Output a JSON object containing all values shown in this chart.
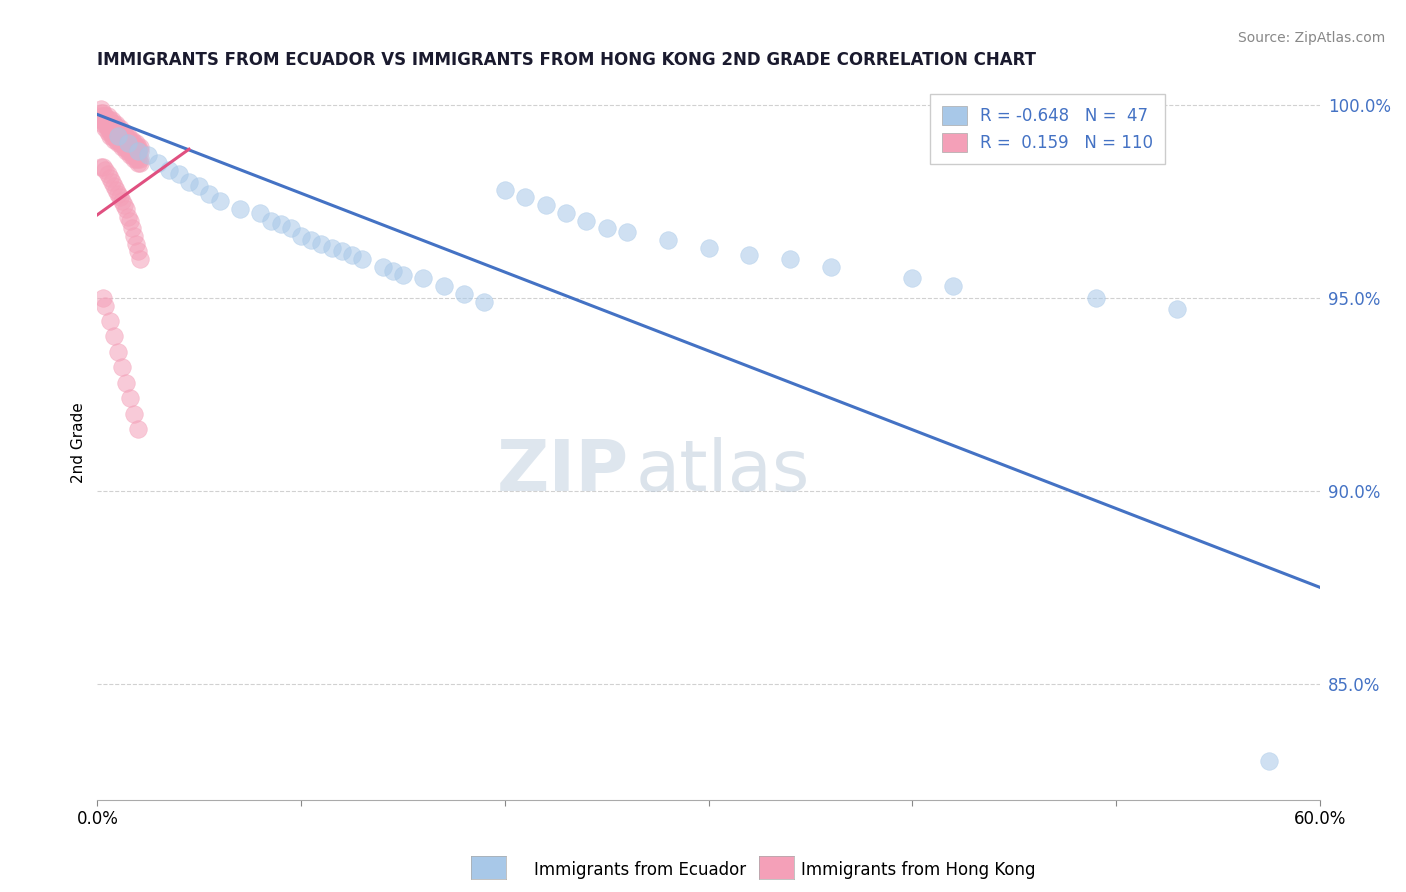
{
  "title": "IMMIGRANTS FROM ECUADOR VS IMMIGRANTS FROM HONG KONG 2ND GRADE CORRELATION CHART",
  "source": "Source: ZipAtlas.com",
  "xlabel_blue": "Immigrants from Ecuador",
  "xlabel_pink": "Immigrants from Hong Kong",
  "ylabel": "2nd Grade",
  "xlim": [
    0.0,
    0.6
  ],
  "ylim": [
    0.82,
    1.005
  ],
  "yticks": [
    0.85,
    0.9,
    0.95,
    1.0
  ],
  "ytick_labels": [
    "85.0%",
    "90.0%",
    "95.0%",
    "100.0%"
  ],
  "xticks": [
    0.0,
    0.1,
    0.2,
    0.3,
    0.4,
    0.5,
    0.6
  ],
  "xtick_labels": [
    "0.0%",
    "",
    "",
    "",
    "",
    "",
    "60.0%"
  ],
  "R_blue": -0.648,
  "N_blue": 47,
  "R_pink": 0.159,
  "N_pink": 110,
  "blue_color": "#a8c8e8",
  "pink_color": "#f4a0b8",
  "blue_line_color": "#4472c4",
  "pink_line_color": "#e05080",
  "watermark_zip": "ZIP",
  "watermark_atlas": "atlas",
  "blue_trend_x": [
    0.0,
    0.6
  ],
  "blue_trend_y": [
    0.9975,
    0.875
  ],
  "pink_trend_x": [
    0.0,
    0.045
  ],
  "pink_trend_y": [
    0.9715,
    0.9885
  ],
  "blue_scatter_x": [
    0.01,
    0.015,
    0.02,
    0.025,
    0.03,
    0.035,
    0.04,
    0.045,
    0.05,
    0.055,
    0.06,
    0.07,
    0.08,
    0.085,
    0.09,
    0.095,
    0.1,
    0.105,
    0.11,
    0.115,
    0.12,
    0.125,
    0.13,
    0.14,
    0.145,
    0.15,
    0.16,
    0.17,
    0.18,
    0.19,
    0.2,
    0.21,
    0.22,
    0.23,
    0.24,
    0.25,
    0.26,
    0.28,
    0.3,
    0.32,
    0.34,
    0.36,
    0.4,
    0.42,
    0.49,
    0.53,
    0.575
  ],
  "blue_scatter_y": [
    0.992,
    0.99,
    0.988,
    0.987,
    0.985,
    0.983,
    0.982,
    0.98,
    0.979,
    0.977,
    0.975,
    0.973,
    0.972,
    0.97,
    0.969,
    0.968,
    0.966,
    0.965,
    0.964,
    0.963,
    0.962,
    0.961,
    0.96,
    0.958,
    0.957,
    0.956,
    0.955,
    0.953,
    0.951,
    0.949,
    0.978,
    0.976,
    0.974,
    0.972,
    0.97,
    0.968,
    0.967,
    0.965,
    0.963,
    0.961,
    0.96,
    0.958,
    0.955,
    0.953,
    0.95,
    0.947,
    0.83
  ],
  "pink_scatter_x": [
    0.002,
    0.003,
    0.004,
    0.005,
    0.006,
    0.007,
    0.008,
    0.009,
    0.01,
    0.011,
    0.012,
    0.013,
    0.014,
    0.015,
    0.016,
    0.017,
    0.018,
    0.019,
    0.02,
    0.021,
    0.002,
    0.003,
    0.004,
    0.005,
    0.006,
    0.007,
    0.008,
    0.009,
    0.01,
    0.011,
    0.012,
    0.013,
    0.014,
    0.015,
    0.016,
    0.017,
    0.018,
    0.019,
    0.02,
    0.021,
    0.002,
    0.003,
    0.004,
    0.005,
    0.006,
    0.007,
    0.008,
    0.009,
    0.01,
    0.011,
    0.012,
    0.013,
    0.014,
    0.015,
    0.016,
    0.017,
    0.018,
    0.019,
    0.02,
    0.021,
    0.002,
    0.003,
    0.004,
    0.005,
    0.006,
    0.007,
    0.008,
    0.009,
    0.01,
    0.011,
    0.012,
    0.013,
    0.014,
    0.015,
    0.016,
    0.017,
    0.018,
    0.019,
    0.02,
    0.021,
    0.002,
    0.003,
    0.004,
    0.005,
    0.006,
    0.007,
    0.008,
    0.009,
    0.01,
    0.011,
    0.012,
    0.013,
    0.014,
    0.015,
    0.016,
    0.017,
    0.018,
    0.019,
    0.02,
    0.021,
    0.003,
    0.004,
    0.006,
    0.008,
    0.01,
    0.012,
    0.014,
    0.016,
    0.018,
    0.02
  ],
  "pink_scatter_y": [
    0.999,
    0.998,
    0.997,
    0.997,
    0.996,
    0.996,
    0.995,
    0.995,
    0.994,
    0.994,
    0.993,
    0.993,
    0.992,
    0.992,
    0.991,
    0.991,
    0.99,
    0.99,
    0.989,
    0.989,
    0.998,
    0.997,
    0.996,
    0.996,
    0.995,
    0.995,
    0.994,
    0.994,
    0.993,
    0.993,
    0.992,
    0.992,
    0.991,
    0.991,
    0.99,
    0.99,
    0.989,
    0.989,
    0.988,
    0.988,
    0.997,
    0.996,
    0.995,
    0.994,
    0.993,
    0.993,
    0.992,
    0.992,
    0.991,
    0.991,
    0.99,
    0.99,
    0.989,
    0.989,
    0.988,
    0.988,
    0.987,
    0.987,
    0.986,
    0.986,
    0.996,
    0.995,
    0.994,
    0.993,
    0.992,
    0.992,
    0.991,
    0.991,
    0.99,
    0.99,
    0.989,
    0.989,
    0.988,
    0.988,
    0.987,
    0.987,
    0.986,
    0.986,
    0.985,
    0.985,
    0.984,
    0.984,
    0.983,
    0.982,
    0.981,
    0.98,
    0.979,
    0.978,
    0.977,
    0.976,
    0.975,
    0.974,
    0.973,
    0.971,
    0.97,
    0.968,
    0.966,
    0.964,
    0.962,
    0.96,
    0.95,
    0.948,
    0.944,
    0.94,
    0.936,
    0.932,
    0.928,
    0.924,
    0.92,
    0.916
  ]
}
